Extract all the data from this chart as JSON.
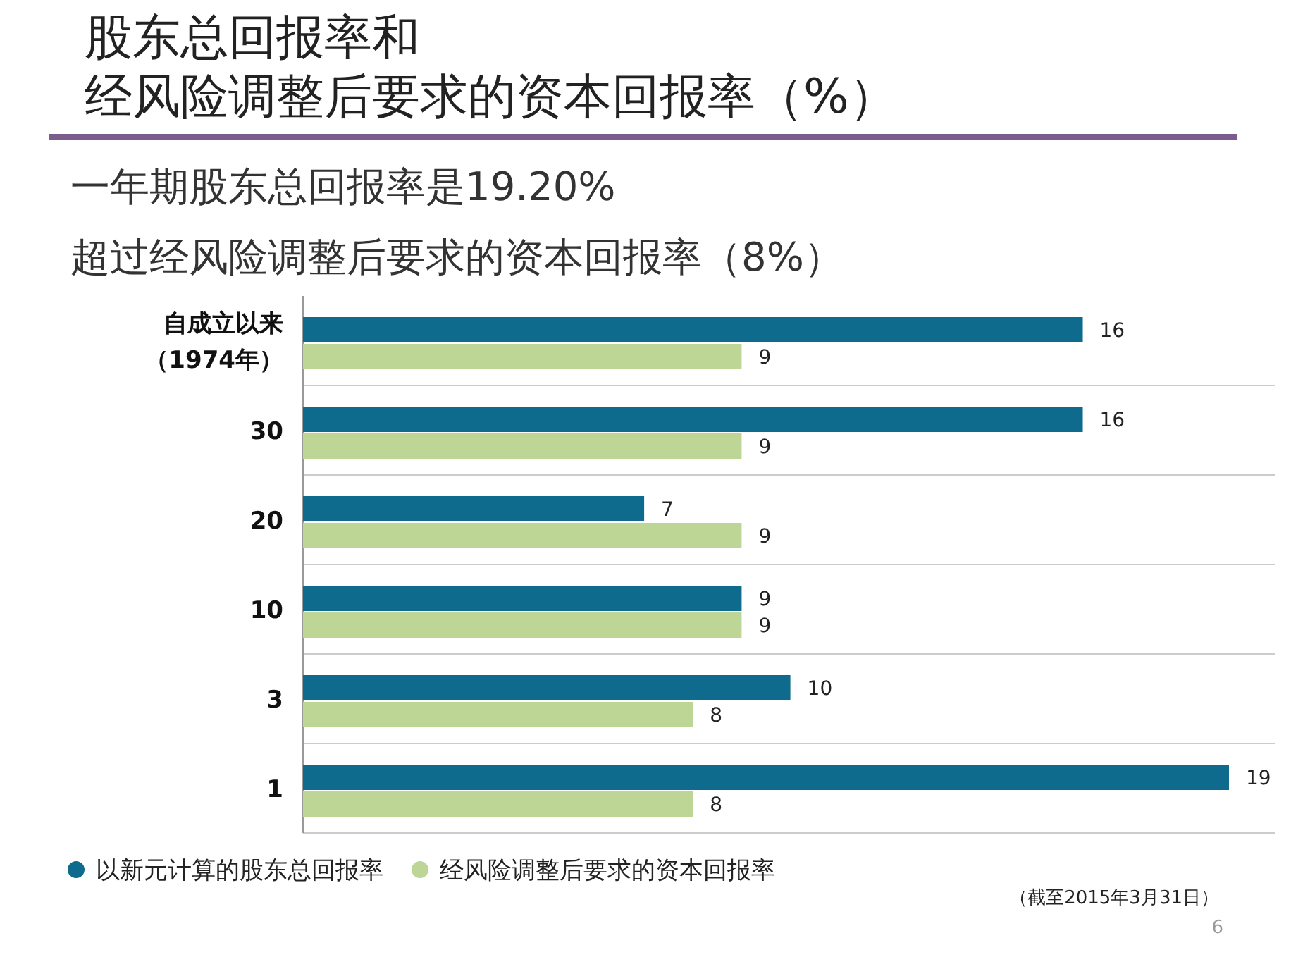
{
  "chart_data": {
    "type": "bar",
    "orientation": "horizontal",
    "title": "股东总回报率和",
    "subtitle": "经风险调整后要求的资本回报率（%）",
    "categories": [
      "自成立以来（1974年）",
      "30",
      "20",
      "10",
      "3",
      "1"
    ],
    "series": [
      {
        "name": "以新元计算的股东总回报率",
        "color": "#0e6b8e",
        "values": [
          16,
          16,
          7,
          9,
          10,
          19
        ]
      },
      {
        "name": "经风险调整后要求的资本回报率",
        "color": "#bdd696",
        "values": [
          9,
          9,
          9,
          9,
          8,
          8
        ]
      }
    ],
    "data_labels": true,
    "legend": "bottom left",
    "annotations": [
      "一年期股东总回报率是19.20%",
      "超过经风险调整后要求的资本回报率（8%）",
      "（截至2015年3月31日）",
      "6"
    ]
  }
}
